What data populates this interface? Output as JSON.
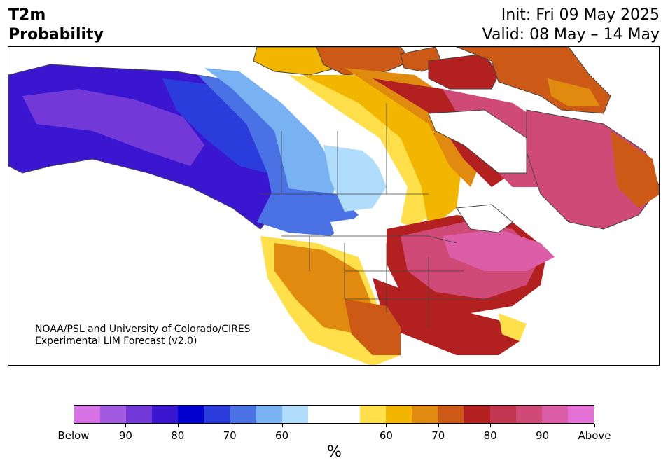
{
  "header": {
    "title_line1": "T2m",
    "title_line2": "Probability",
    "init": "Init: Fri 09 May 2025",
    "valid": "Valid: 08 May – 14 May"
  },
  "map": {
    "credit_line1": "NOAA/PSL and University of Colorado/CIRES",
    "credit_line2": "Experimental LIM Forecast (v2.0)"
  },
  "colorbar": {
    "colors": [
      "#d873e6",
      "#a25be0",
      "#7339d8",
      "#3a16d1",
      "#0000cf",
      "#2a3ddc",
      "#4a72e5",
      "#79b2f2",
      "#b0ddfb",
      "#ffffff",
      "#ffffff",
      "#ffe04a",
      "#f2b500",
      "#e08a10",
      "#cc5a16",
      "#b32020",
      "#c13550",
      "#cf4a76",
      "#dc5ea7",
      "#e371d6"
    ],
    "ticks": [
      "Below",
      "90",
      "80",
      "70",
      "60",
      "60",
      "70",
      "80",
      "90",
      "Above"
    ],
    "unit": "%"
  },
  "colors": {
    "below_strong": "#3a16d1",
    "below_weak": "#b0ddfb",
    "near_normal": "#ffffff",
    "above_weak": "#ffe04a",
    "above_strong": "#cf4a76"
  }
}
